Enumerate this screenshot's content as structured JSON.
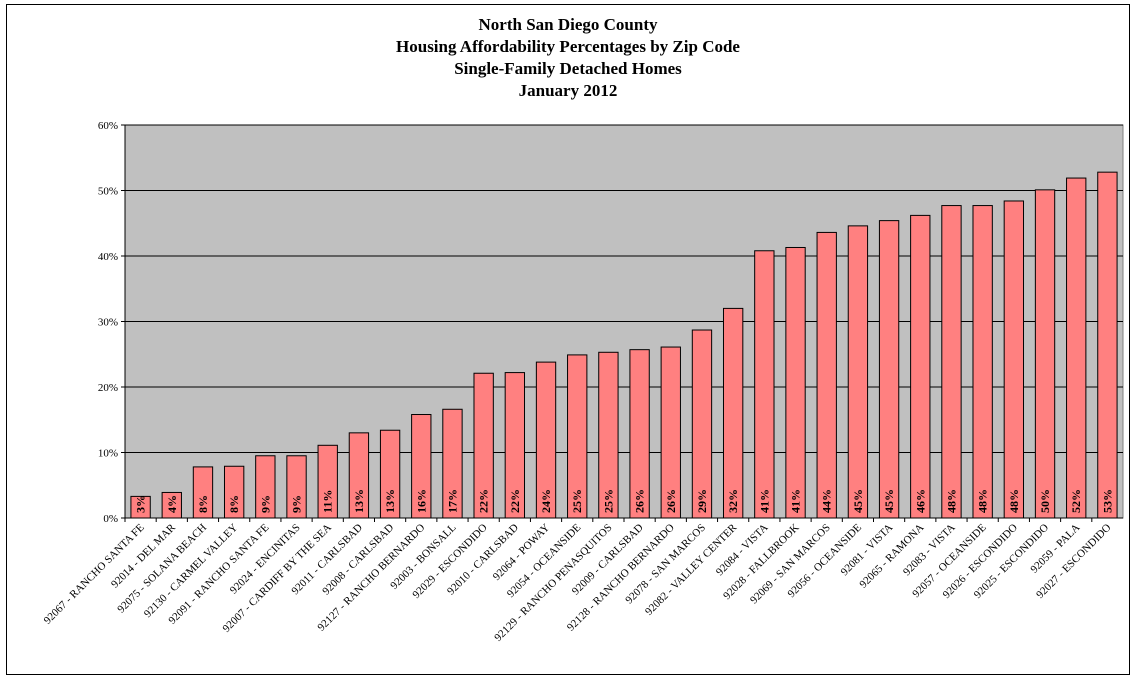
{
  "chart_data": {
    "type": "bar",
    "title": [
      "North San Diego County",
      "Housing Affordability Percentages by Zip Code",
      "Single-Family Detached Homes",
      "January 2012"
    ],
    "xlabel": "",
    "ylabel": "",
    "ylim": [
      0,
      60
    ],
    "y_ticks": [
      "0%",
      "10%",
      "20%",
      "30%",
      "40%",
      "50%",
      "60%"
    ],
    "grid": true,
    "legend": "none",
    "colors": {
      "bar": "#ff8080",
      "plot_bg": "#c0c0c0",
      "grid": "#000000"
    },
    "categories": [
      "92067 - RANCHO SANTA FE",
      "92014 - DEL MAR",
      "92075 - SOLANA BEACH",
      "92130 - CARMEL VALLEY",
      "92091 - RANCHO SANTA FE",
      "92024 - ENCINITAS",
      "92007 - CARDIFF BY THE SEA",
      "92011 - CARLSBAD",
      "92008 - CARLSBAD",
      "92127 - RANCHO BERNARDO",
      "92003 - BONSALL",
      "92029 - ESCONDIDO",
      "92010 - CARLSBAD",
      "92064 - POWAY",
      "92054 - OCEANSIDE",
      "92129 - RANCHO PENASQUITOS",
      "92009 - CARLSBAD",
      "92128 - RANCHO BERNARDO",
      "92078 - SAN MARCOS",
      "92082 - VALLEY CENTER",
      "92084 - VISTA",
      "92028 - FALLBROOK",
      "92069 - SAN MARCOS",
      "92056 - OCEANSIDE",
      "92081 - VISTA",
      "92065 - RAMONA",
      "92083 - VISTA",
      "92057 - OCEANSIDE",
      "92026 - ESCONDIDO",
      "92025 - ESCONDIDO",
      "92059 - PALA",
      "92027 - ESCONDIDO"
    ],
    "values": [
      3.3,
      3.9,
      7.8,
      7.9,
      9.5,
      9.5,
      11.1,
      13.0,
      13.4,
      15.8,
      16.6,
      22.1,
      22.2,
      23.8,
      24.9,
      25.3,
      25.7,
      26.1,
      28.7,
      32.0,
      40.8,
      41.3,
      43.6,
      44.6,
      45.4,
      46.2,
      47.7,
      47.7,
      48.4,
      50.1,
      51.9,
      52.8
    ],
    "data_labels": [
      "3%",
      "4%",
      "8%",
      "8%",
      "9%",
      "9%",
      "11%",
      "13%",
      "13%",
      "16%",
      "17%",
      "22%",
      "22%",
      "24%",
      "25%",
      "25%",
      "26%",
      "26%",
      "29%",
      "32%",
      "41%",
      "41%",
      "44%",
      "45%",
      "45%",
      "46%",
      "48%",
      "48%",
      "48%",
      "50%",
      "52%",
      "53%"
    ]
  }
}
